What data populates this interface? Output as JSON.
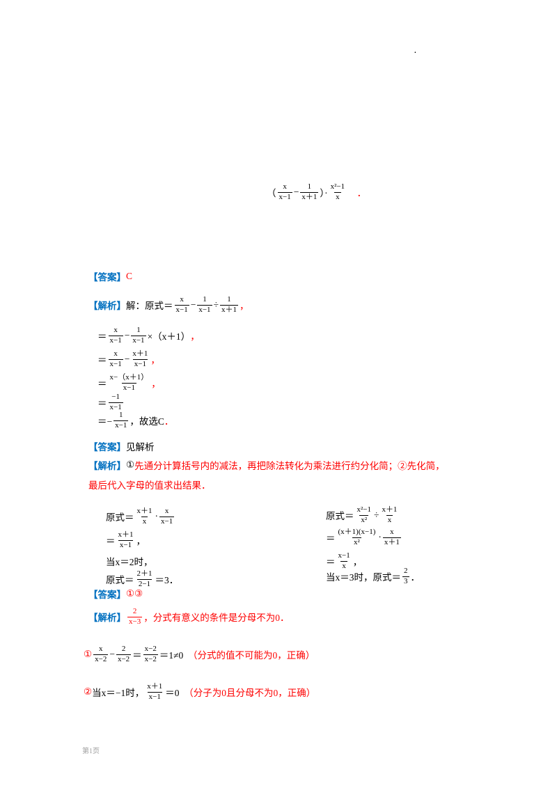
{
  "page": {
    "corner_mark": "．",
    "footer_text": "第1页"
  },
  "problem_expression": {
    "segments": [
      {
        "t": "（"
      },
      {
        "n": "x",
        "d": "x−1"
      },
      {
        "t": "−"
      },
      {
        "n": "1",
        "d": "x＋1"
      },
      {
        "t": "）·"
      },
      {
        "n": "x²−1",
        "d": "x"
      },
      {
        "t": "　"
      },
      {
        "t": "．",
        "c": "red"
      }
    ]
  },
  "section1": {
    "answer_label": "【答案】",
    "answer_value": "C",
    "analysis": [
      {
        "t": "【解析】",
        "c": "blue b"
      },
      {
        "t": "解：原式＝"
      },
      {
        "n": "x",
        "d": "x−1"
      },
      {
        "t": "−"
      },
      {
        "n": "1",
        "d": "x−1"
      },
      {
        "t": "÷"
      },
      {
        "n": "1",
        "d": "x＋1"
      },
      {
        "t": "，",
        "c": "red"
      }
    ],
    "steps": [
      {
        "segments": [
          {
            "t": "＝"
          },
          {
            "n": "x",
            "d": "x−1"
          },
          {
            "t": "−"
          },
          {
            "n": "1",
            "d": "x−1"
          },
          {
            "t": "×（x＋1）"
          },
          {
            "t": "，",
            "c": "red"
          }
        ]
      },
      {
        "segments": [
          {
            "t": "＝"
          },
          {
            "n": "x",
            "d": "x−1"
          },
          {
            "t": "−"
          },
          {
            "n": "x＋1",
            "d": "x−1"
          },
          {
            "t": "，",
            "c": "red"
          }
        ]
      },
      {
        "segments": [
          {
            "t": "＝"
          },
          {
            "n": "x−（x＋1）",
            "d": "x−1"
          },
          {
            "t": "，",
            "c": "red"
          }
        ]
      },
      {
        "segments": [
          {
            "t": "＝"
          },
          {
            "n": "−1",
            "d": "x−1"
          }
        ]
      },
      {
        "segments": [
          {
            "t": "＝−"
          },
          {
            "n": "1",
            "d": "x−1"
          },
          {
            "t": "，故选C"
          },
          {
            "t": "．",
            "c": "red"
          }
        ]
      }
    ]
  },
  "section2": {
    "answer_label": "【答案】",
    "answer_value": "见解析",
    "analysis_line1": [
      {
        "t": "【解析】",
        "c": "blue b"
      },
      {
        "t": "①",
        "c": "blk"
      },
      {
        "t": "先通分计算括号内的减法，再把除法转化为乘法进行约分化简；②先化简，",
        "c": "red"
      }
    ],
    "analysis_line2": [
      {
        "t": "最后代入字母的值求出结果．",
        "c": "red"
      }
    ],
    "work_left": [
      {
        "segments": [
          {
            "t": "原式＝"
          },
          {
            "n": "x＋1",
            "d": "x"
          },
          {
            "t": "·"
          },
          {
            "n": "x",
            "d": "x−1"
          }
        ]
      },
      {
        "segments": [
          {
            "t": "＝"
          },
          {
            "n": "x＋1",
            "d": "x−1"
          },
          {
            "t": "，"
          }
        ]
      },
      {
        "segments": [
          {
            "t": "当x＝2时，"
          }
        ]
      },
      {
        "segments": [
          {
            "t": "原式＝"
          },
          {
            "n": "2＋1",
            "d": "2−1"
          },
          {
            "t": "＝3．"
          }
        ]
      }
    ],
    "work_right": [
      {
        "segments": [
          {
            "t": "原式＝"
          },
          {
            "n": "x²−1",
            "d": "x²"
          },
          {
            "t": "÷"
          },
          {
            "n": "x＋1",
            "d": "x"
          }
        ]
      },
      {
        "segments": [
          {
            "t": "＝"
          },
          {
            "n": "(x＋1)(x−1)",
            "d": "x²"
          },
          {
            "t": "·"
          },
          {
            "n": "x",
            "d": "x＋1"
          }
        ]
      },
      {
        "segments": [
          {
            "t": "＝"
          },
          {
            "n": "x−1",
            "d": "x"
          },
          {
            "t": "，"
          }
        ]
      },
      {
        "segments": [
          {
            "t": "当x＝3时，原式＝"
          },
          {
            "n": "2",
            "d": "3"
          },
          {
            "t": "．"
          }
        ]
      }
    ]
  },
  "section3": {
    "answer_label": "【答案】",
    "answer_value": "①③",
    "analysis": [
      {
        "t": "【解析】",
        "c": "blue b"
      },
      {
        "n": "2",
        "d": "x−3",
        "c": "red"
      },
      {
        "t": "，分式有意义的条件是分母不为0．",
        "c": "red"
      }
    ],
    "items": [
      {
        "segments": [
          {
            "t": "①",
            "c": "red"
          },
          {
            "n": "x",
            "d": "x−2"
          },
          {
            "t": "−"
          },
          {
            "n": "2",
            "d": "x−2"
          },
          {
            "t": "＝"
          },
          {
            "n": "x−2",
            "d": "x−2"
          },
          {
            "t": "＝1≠0"
          },
          {
            "t": "　（分式的值不可能为0，正确）",
            "c": "red"
          }
        ]
      },
      {
        "segments": [
          {
            "t": "②",
            "c": "red"
          },
          {
            "t": "当x＝−1时，"
          },
          {
            "n": "x＋1",
            "d": "x−1"
          },
          {
            "t": "＝0"
          },
          {
            "t": "　（分子为0且分母不为0，正确）",
            "c": "red"
          }
        ]
      }
    ]
  }
}
